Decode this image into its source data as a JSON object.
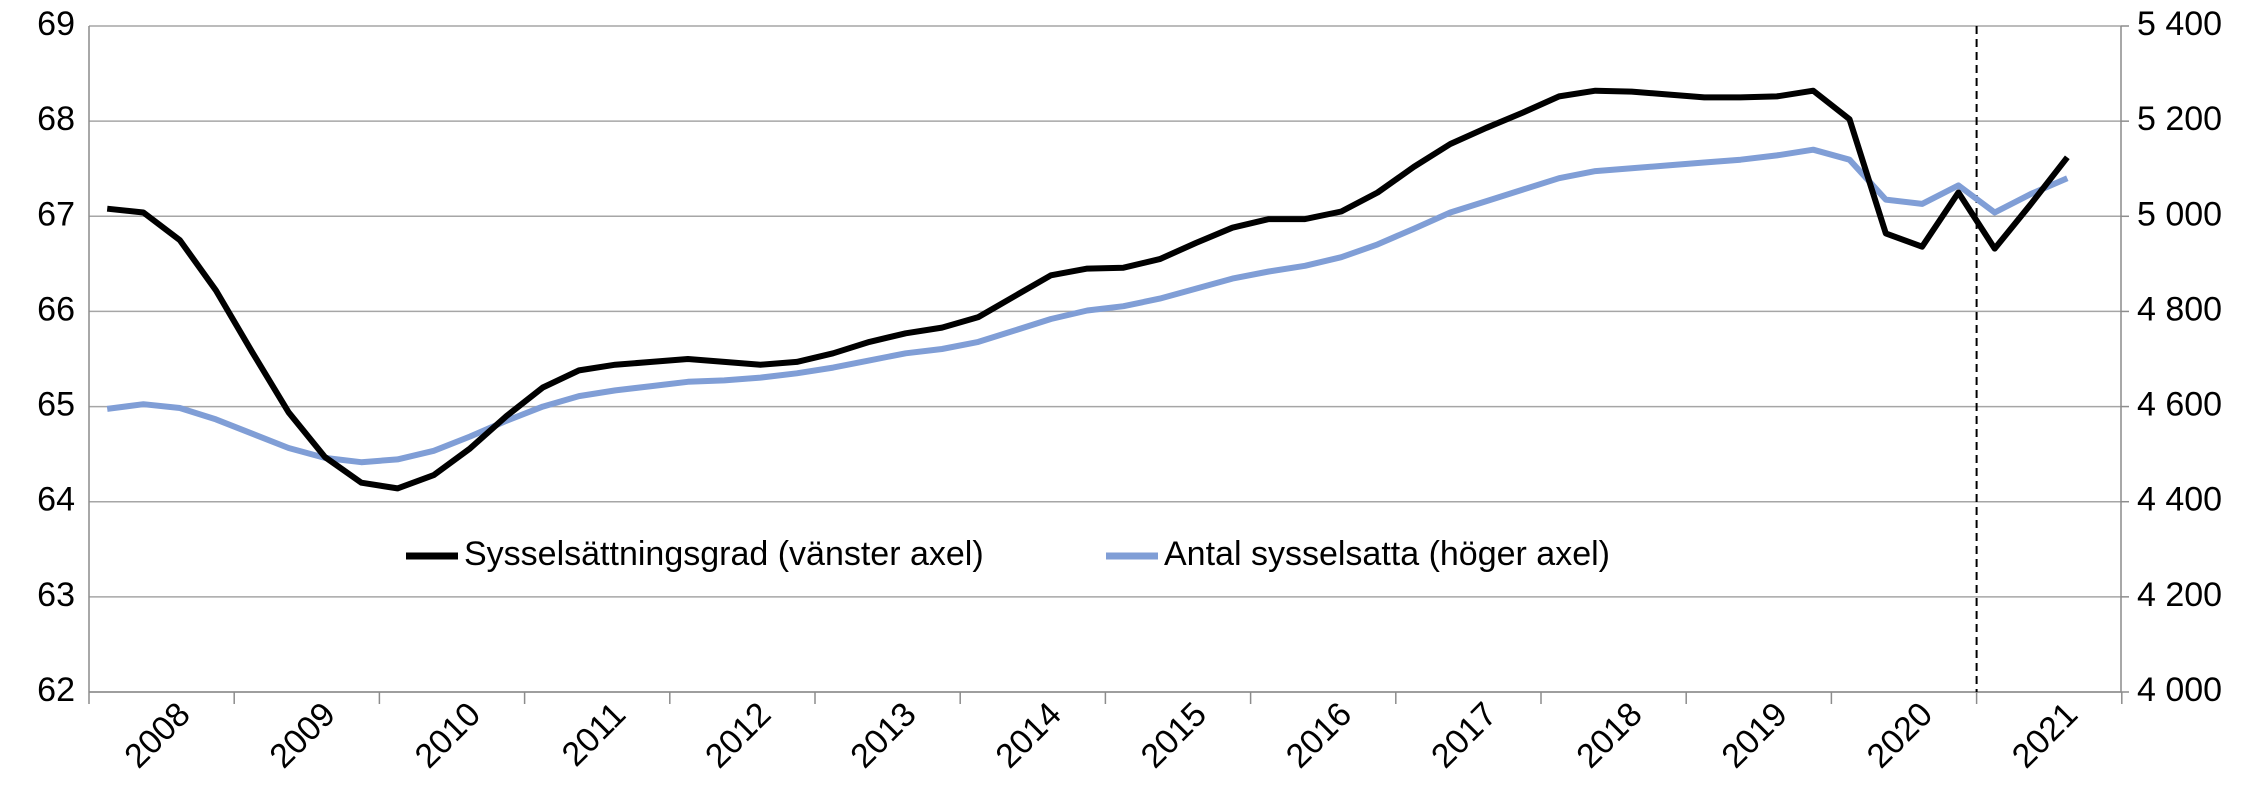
{
  "chart_data": {
    "type": "line",
    "categories": [
      "2008",
      null,
      null,
      null,
      "2009",
      null,
      null,
      null,
      "2010",
      null,
      null,
      null,
      "2011",
      null,
      null,
      null,
      "2012",
      null,
      null,
      null,
      "2013",
      null,
      null,
      null,
      "2014",
      null,
      null,
      null,
      "2015",
      null,
      null,
      null,
      "2016",
      null,
      null,
      null,
      "2017",
      null,
      null,
      null,
      "2018",
      null,
      null,
      null,
      "2019",
      null,
      null,
      null,
      "2020",
      null,
      null,
      null,
      "2021",
      null,
      null
    ],
    "series": [
      {
        "name": "Sysselsättningsgrad (vänster axel)",
        "color": "#000000",
        "values": [
          67.08,
          67.04,
          66.75,
          66.22,
          65.57,
          64.94,
          64.47,
          64.2,
          64.14,
          64.28,
          64.56,
          64.9,
          65.2,
          65.38,
          65.44,
          65.47,
          65.5,
          65.47,
          65.44,
          65.47,
          65.56,
          65.68,
          65.77,
          65.83,
          65.94,
          66.16,
          66.38,
          66.45,
          66.46,
          66.55,
          66.72,
          66.88,
          66.97,
          66.97,
          67.05,
          67.25,
          67.52,
          67.76,
          67.93,
          68.09,
          68.26,
          68.32,
          68.31,
          68.28,
          68.25,
          68.25,
          68.26,
          68.32,
          68.02,
          66.82,
          66.68,
          67.25,
          66.66,
          67.13,
          67.62
        ]
      },
      {
        "name": "Antal sysselsatta (höger axel)",
        "color": "#809ed6",
        "axis": "y2",
        "values": [
          4595,
          4605,
          4597,
          4573,
          4543,
          4513,
          4492,
          4483,
          4489,
          4507,
          4537,
          4570,
          4600,
          4622,
          4634,
          4643,
          4652,
          4655,
          4661,
          4670,
          4682,
          4697,
          4712,
          4721,
          4736,
          4760,
          4784,
          4802,
          4811,
          4827,
          4848,
          4869,
          4884,
          4896,
          4914,
          4941,
          4974,
          5008,
          5032,
          5056,
          5080,
          5095,
          5101,
          5107,
          5113,
          5119,
          5128,
          5140,
          5119,
          5035,
          5026,
          5065,
          5008,
          5047,
          5080
        ]
      }
    ],
    "ylim": [
      62,
      69
    ],
    "yticks": [
      62,
      63,
      64,
      65,
      66,
      67,
      68,
      69
    ],
    "y2lim": [
      4000,
      5400
    ],
    "y2ticks": [
      {
        "value": 4000,
        "label": "4 000"
      },
      {
        "value": 4200,
        "label": "4 200"
      },
      {
        "value": 4400,
        "label": "4 400"
      },
      {
        "value": 4600,
        "label": "4 600"
      },
      {
        "value": 4800,
        "label": "4 800"
      },
      {
        "value": 5000,
        "label": "5 000"
      },
      {
        "value": 5200,
        "label": "5 200"
      },
      {
        "value": 5400,
        "label": "5 400"
      }
    ],
    "grid": true
  }
}
